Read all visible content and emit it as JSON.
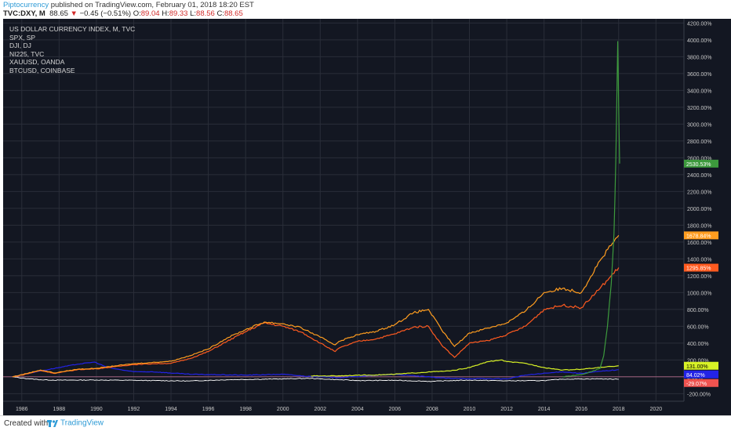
{
  "header": {
    "author": "Piptocurrency",
    "published": "published on TradingView.com, February 01, 2018 18:20 EST",
    "symbol": "TVC:DXY, M",
    "last": "88.65",
    "change_arrow": "▼",
    "change": "−0.45 (−0.51%)",
    "o_label": "O:",
    "o_val": "89.04",
    "h_label": "H:",
    "h_val": "89.33",
    "l_label": "L:",
    "l_val": "88.56",
    "c_label": "C:",
    "c_val": "88.65"
  },
  "legend": [
    "US DOLLAR CURRENCY INDEX, M, TVC",
    "SPX, SP",
    "DJI, DJ",
    "NI225, TVC",
    "XAUUSD, OANDA",
    "BTCUSD, COINBASE"
  ],
  "footer": {
    "created": "Created with",
    "brand": "TradingView",
    "logo_icon": "tradingview-logo-icon"
  },
  "colors": {
    "background": "#131722",
    "grid": "#2a2e39",
    "axis_text": "#c8c8c8",
    "dxy": "#ffffff",
    "spx": "#ff5a1f",
    "dji": "#ff9d1f",
    "ni225": "#2323e6",
    "xau": "#d8f226",
    "btc": "#3d9a3d"
  },
  "chart_data": {
    "type": "line",
    "title": "",
    "xlabel": "",
    "ylabel": "",
    "x_ticks": [
      "1986",
      "1988",
      "1990",
      "1992",
      "1994",
      "1996",
      "1998",
      "2000",
      "2002",
      "2004",
      "2006",
      "2008",
      "2010",
      "2012",
      "2014",
      "2016",
      "2018",
      "2020"
    ],
    "y_ticks": [
      "-200.00%",
      "0.00%",
      "200.00%",
      "400.00%",
      "600.00%",
      "800.00%",
      "1000.00%",
      "1200.00%",
      "1400.00%",
      "1600.00%",
      "1800.00%",
      "2000.00%",
      "2200.00%",
      "2400.00%",
      "2600.00%",
      "2800.00%",
      "3000.00%",
      "3200.00%",
      "3400.00%",
      "3600.00%",
      "3800.00%",
      "4000.00%",
      "4200.00%"
    ],
    "xlim": [
      1985,
      2021.5
    ],
    "ylim": [
      -290,
      4250
    ],
    "grid": true,
    "legend_position": "top-left",
    "series": [
      {
        "name": "US DOLLAR CURRENCY INDEX, M, TVC",
        "color": "#ffffff",
        "last_label": "-29.07%",
        "label_bg": "#ef5350",
        "label_fg": "#ffffff",
        "x": [
          1985.5,
          1986,
          1987,
          1988,
          1990,
          1992,
          1995,
          1997,
          2000,
          2001.5,
          2002,
          2004,
          2006,
          2008,
          2009,
          2010,
          2012,
          2014,
          2015,
          2016,
          2017,
          2018
        ],
        "y": [
          0,
          -15,
          -35,
          -40,
          -38,
          -42,
          -50,
          -35,
          -25,
          -18,
          -25,
          -45,
          -42,
          -55,
          -45,
          -40,
          -48,
          -45,
          -28,
          -25,
          -25,
          -29.07
        ]
      },
      {
        "name": "SPX, SP",
        "color": "#ff5a1f",
        "last_label": "1295.85%",
        "label_bg": "#ff5a1f",
        "label_fg": "#ffffff",
        "x": [
          1985.5,
          1986,
          1987,
          1987.8,
          1988,
          1989,
          1990,
          1991,
          1992,
          1993,
          1994,
          1995,
          1996,
          1997,
          1998,
          1999,
          2000,
          2001,
          2002,
          2002.8,
          2003,
          2004,
          2005,
          2006,
          2007,
          2007.8,
          2008.5,
          2009.2,
          2010,
          2011,
          2012,
          2013,
          2014,
          2015,
          2016,
          2017,
          2018
        ],
        "y": [
          0,
          20,
          75,
          40,
          50,
          85,
          95,
          120,
          145,
          155,
          160,
          215,
          300,
          420,
          535,
          640,
          600,
          530,
          400,
          300,
          340,
          420,
          450,
          510,
          590,
          600,
          380,
          230,
          400,
          430,
          500,
          600,
          800,
          850,
          820,
          1050,
          1295.85
        ]
      },
      {
        "name": "DJI, DJ",
        "color": "#ff9d1f",
        "last_label": "1678.84%",
        "label_bg": "#ff9d1f",
        "label_fg": "#ffffff",
        "x": [
          1985.5,
          1986,
          1987,
          1987.8,
          1988,
          1989,
          1990,
          1991,
          1992,
          1993,
          1994,
          1995,
          1996,
          1997,
          1998,
          1999,
          2000,
          2001,
          2002,
          2002.8,
          2003,
          2004,
          2005,
          2006,
          2007,
          2007.8,
          2008.5,
          2009.2,
          2010,
          2011,
          2012,
          2013,
          2014,
          2015,
          2016,
          2017,
          2018
        ],
        "y": [
          0,
          25,
          80,
          45,
          55,
          90,
          100,
          130,
          155,
          170,
          185,
          250,
          330,
          460,
          560,
          650,
          630,
          580,
          470,
          380,
          420,
          500,
          540,
          620,
          760,
          800,
          560,
          360,
          520,
          580,
          640,
          780,
          1000,
          1050,
          1000,
          1380,
          1678.84
        ]
      },
      {
        "name": "NI225, TVC",
        "color": "#2323e6",
        "last_label": "84.02%",
        "label_bg": "#2323e6",
        "label_fg": "#ffffff",
        "x": [
          1985.5,
          1986,
          1987,
          1988,
          1989,
          1989.9,
          1990.5,
          1991,
          1992,
          1993,
          1995,
          1998,
          2000,
          2001,
          2003,
          2006,
          2008,
          2009,
          2012,
          2013,
          2015,
          2016,
          2017,
          2018
        ],
        "y": [
          0,
          25,
          70,
          110,
          150,
          175,
          120,
          95,
          60,
          60,
          30,
          20,
          30,
          10,
          -10,
          30,
          -5,
          -20,
          -25,
          20,
          60,
          40,
          65,
          84.02
        ]
      },
      {
        "name": "XAUUSD, OANDA",
        "color": "#d8f226",
        "last_label": "131.00%",
        "label_bg": "#d8f226",
        "label_fg": "#000000",
        "x": [
          2001.5,
          2002,
          2003,
          2004,
          2005,
          2006,
          2007,
          2008,
          2009,
          2010,
          2011,
          2011.7,
          2012,
          2013,
          2014,
          2015,
          2016,
          2017,
          2018
        ],
        "y": [
          10,
          10,
          12,
          18,
          22,
          30,
          45,
          60,
          70,
          110,
          180,
          200,
          180,
          160,
          110,
          80,
          90,
          110,
          131.0
        ]
      },
      {
        "name": "BTCUSD, COINBASE",
        "color": "#3d9a3d",
        "last_label": "2530.53%",
        "label_bg": "#3d9a3d",
        "label_fg": "#ffffff",
        "x": [
          2015,
          2016,
          2016.5,
          2017,
          2017.2,
          2017.4,
          2017.6,
          2017.75,
          2017.85,
          2017.95,
          2018,
          2018.05
        ],
        "y": [
          0,
          25,
          60,
          100,
          250,
          600,
          1100,
          1700,
          2600,
          3980,
          3200,
          2530.53
        ]
      }
    ]
  }
}
